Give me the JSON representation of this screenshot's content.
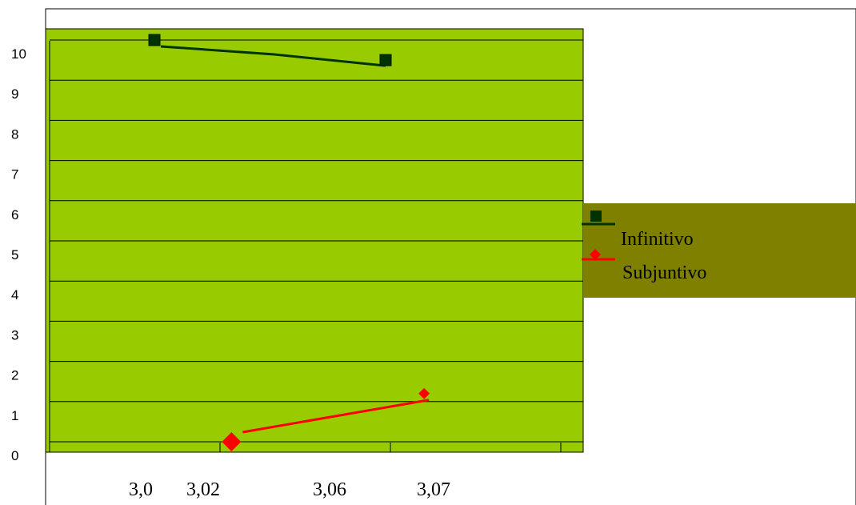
{
  "chart_data": {
    "type": "line",
    "title": "",
    "xlabel": "",
    "ylabel": "",
    "ylim": [
      0,
      10
    ],
    "y_ticks": [
      "0",
      "1",
      "2",
      "3",
      "4",
      "5",
      "6",
      "7",
      "8",
      "9",
      "10"
    ],
    "x_tick_labels": [
      "3,0",
      "3,02",
      "3,06",
      "3,07"
    ],
    "grid": true,
    "legend_position": "right",
    "plot_background": "#99CC00",
    "legend_background": "#808000",
    "series": [
      {
        "name": "Infinitivo",
        "color": "#003300",
        "marker": "square",
        "points": [
          {
            "x": 3.0,
            "y": 10.0
          },
          {
            "x": 3.06,
            "y": 9.5
          }
        ]
      },
      {
        "name": "Subjuntivo",
        "color": "#FF0000",
        "marker": "diamond",
        "points": [
          {
            "x": 3.02,
            "y": 0.0
          },
          {
            "x": 3.07,
            "y": 1.2
          }
        ]
      }
    ]
  }
}
